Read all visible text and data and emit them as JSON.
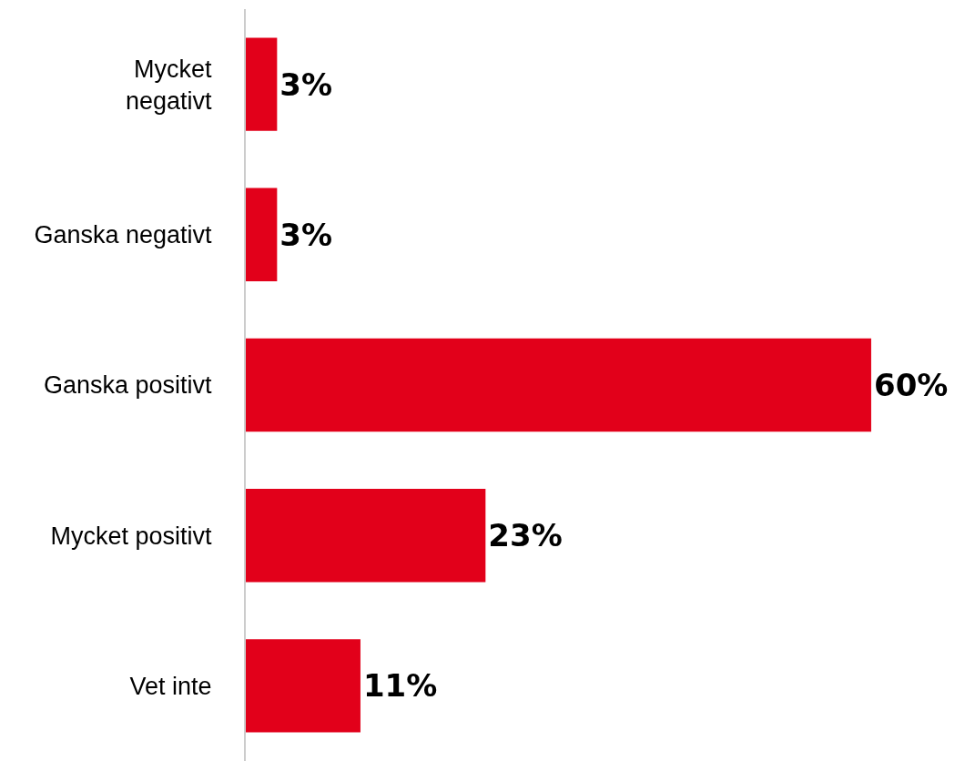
{
  "chart_data": {
    "type": "bar",
    "orientation": "horizontal",
    "categories": [
      "Mycket\nnegativt",
      "Ganska negativt",
      "Ganska positivt",
      "Mycket positivt",
      "Vet inte"
    ],
    "values": [
      3,
      3,
      60,
      23,
      11
    ],
    "value_labels": [
      "3%",
      "3%",
      "60%",
      "23%",
      "11%"
    ],
    "color": "#e2001a",
    "xlim": [
      0,
      69
    ],
    "tick_labels": "y"
  }
}
